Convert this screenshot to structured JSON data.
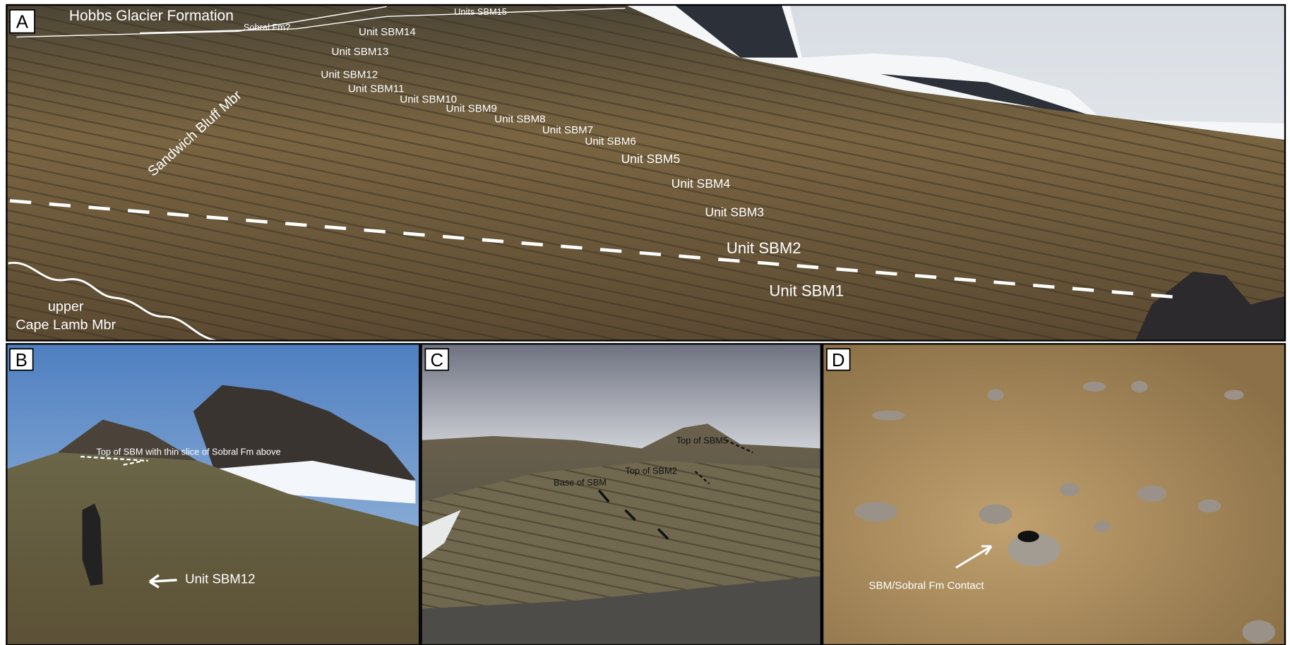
{
  "panels": [
    {
      "letter": "A",
      "labels": [
        "Hobbs Glacier Formation",
        "Sobral Fm?",
        "Units SBM15",
        "Unit SBM14",
        "Unit SBM13",
        "Unit SBM12",
        "Unit SBM11",
        "Unit SBM10",
        "Unit SBM9",
        "Unit SBM8",
        "Unit SBM7",
        "Unit SBM6",
        "Unit SBM5",
        "Unit SBM4",
        "Unit SBM3",
        "Unit SBM2",
        "Unit SBM1",
        "Sandwich Bluff Mbr",
        "upper",
        "Cape Lamb  Mbr"
      ]
    },
    {
      "letter": "B",
      "labels": [
        "Top of SBM with thin slice of Sobral Fm above",
        "Unit SBM12"
      ]
    },
    {
      "letter": "C",
      "labels": [
        "Top of SBM5",
        "Top of SBM2",
        "Base of SBM"
      ]
    },
    {
      "letter": "D",
      "labels": [
        "SBM/Sobral Fm Contact"
      ]
    }
  ]
}
